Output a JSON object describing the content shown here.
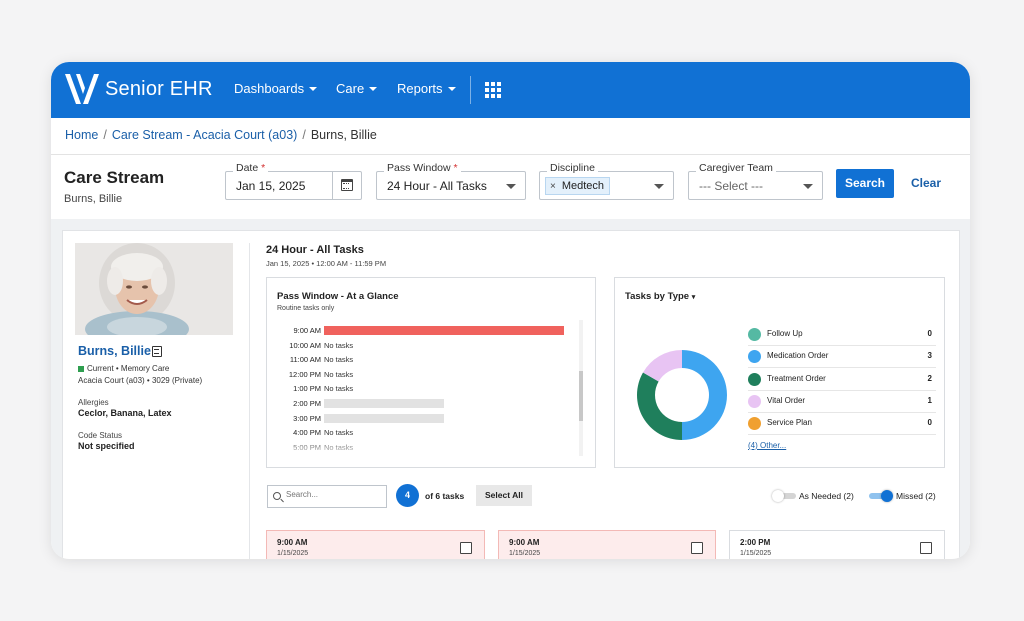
{
  "app": {
    "brand": "Senior EHR",
    "nav": [
      "Dashboards",
      "Care",
      "Reports"
    ]
  },
  "breadcrumb": {
    "home": "Home",
    "stream": "Care Stream - Acacia Court (a03)",
    "current": "Burns, Billie"
  },
  "header": {
    "title": "Care Stream",
    "subtitle": "Burns, Billie"
  },
  "filters": {
    "date_label": "Date",
    "date_value": "Jan 15, 2025",
    "pass_label": "Pass Window",
    "pass_value": "24 Hour - All Tasks",
    "discipline_label": "Discipline",
    "discipline_chip": "Medtech",
    "team_label": "Caregiver Team",
    "team_placeholder": "--- Select ---",
    "search_btn": "Search",
    "clear_btn": "Clear"
  },
  "resident": {
    "name": "Burns, Billie",
    "status": "Current • Memory Care",
    "location": "Acacia Court (a03) • 3029 (Private)",
    "allergies_label": "Allergies",
    "allergies_value": "Ceclor, Banana, Latex",
    "code_label": "Code Status",
    "code_value": "Not specified"
  },
  "summary": {
    "title": "24 Hour - All Tasks",
    "subtitle": "Jan 15, 2025 • 12:00 AM - 11:59 PM"
  },
  "glance": {
    "title": "Pass Window - At a Glance",
    "subtitle": "Routine tasks only",
    "rows": [
      {
        "time": "9:00 AM",
        "text": "",
        "fill": 1.0,
        "color": "#f0625d"
      },
      {
        "time": "10:00 AM",
        "text": "No tasks",
        "fill": 0,
        "color": ""
      },
      {
        "time": "11:00 AM",
        "text": "No tasks",
        "fill": 0,
        "color": ""
      },
      {
        "time": "12:00 PM",
        "text": "No tasks",
        "fill": 0,
        "color": ""
      },
      {
        "time": "1:00 PM",
        "text": "No tasks",
        "fill": 0,
        "color": ""
      },
      {
        "time": "2:00 PM",
        "text": "",
        "fill": 0.5,
        "color": "#e2e2e2"
      },
      {
        "time": "3:00 PM",
        "text": "",
        "fill": 0.5,
        "color": "#e2e2e2"
      },
      {
        "time": "4:00 PM",
        "text": "No tasks",
        "fill": 0,
        "color": ""
      },
      {
        "time": "5:00 PM",
        "text": "No tasks",
        "fill": 0,
        "color": ""
      }
    ]
  },
  "types": {
    "title": "Tasks by Type",
    "items": [
      {
        "label": "Follow Up",
        "count": "0",
        "color": "#55b9a3"
      },
      {
        "label": "Medication Order",
        "count": "3",
        "color": "#3ea5f0"
      },
      {
        "label": "Treatment Order",
        "count": "2",
        "color": "#1f7f5c"
      },
      {
        "label": "Vital Order",
        "count": "1",
        "color": "#e8c4f3"
      },
      {
        "label": "Service Plan",
        "count": "0",
        "color": "#f0a030"
      }
    ],
    "more": "(4) Other...",
    "donut": [
      {
        "value": 3,
        "color": "#3ea5f0"
      },
      {
        "value": 2,
        "color": "#1f7f5c"
      },
      {
        "value": 1,
        "color": "#e8c4f3"
      }
    ]
  },
  "tasks": {
    "search_placeholder": "Search...",
    "count": "4",
    "of_text": "of 6 tasks",
    "select_all": "Select All",
    "as_needed": "As Needed (2)",
    "missed": "Missed (2)",
    "cards": [
      {
        "time": "9:00 AM",
        "date": "1/15/2025"
      },
      {
        "time": "9:00 AM",
        "date": "1/15/2025"
      },
      {
        "time": "2:00 PM",
        "date": "1/15/2025"
      }
    ]
  }
}
